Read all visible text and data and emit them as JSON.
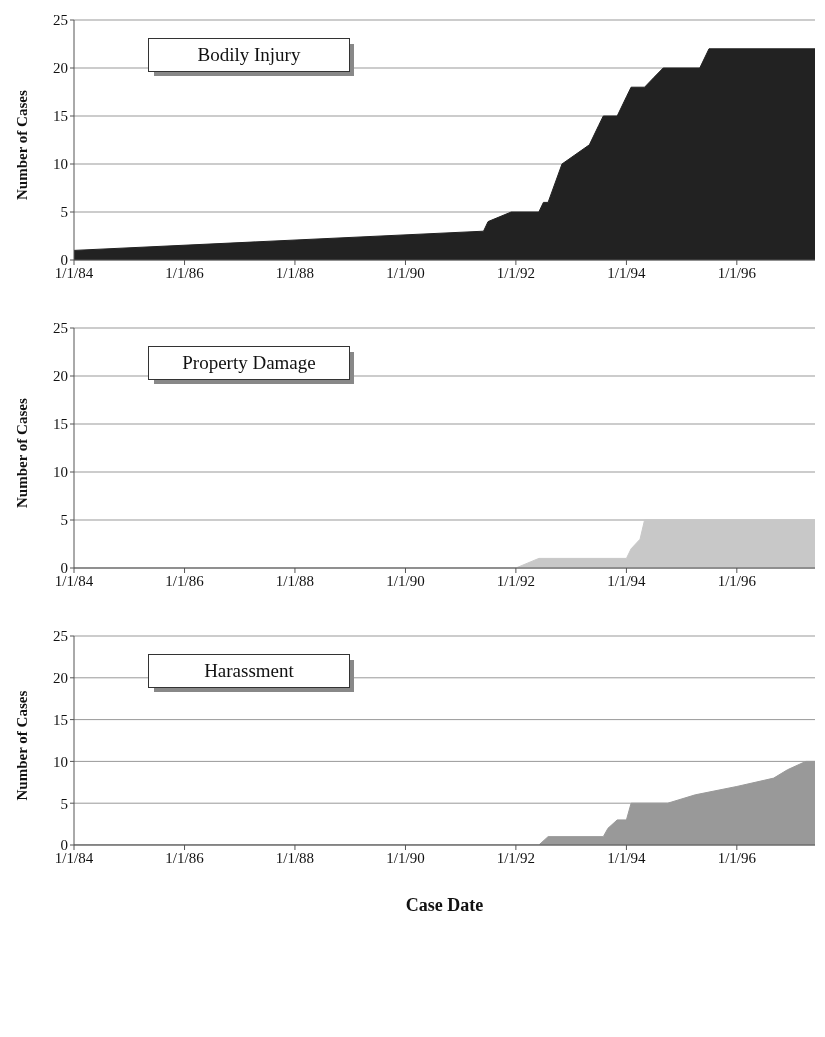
{
  "chart_data": [
    {
      "type": "area",
      "title": "Bodily Injury",
      "ylabel": "Number of Cases",
      "x": [
        "1984-01",
        "1991-06",
        "1991-07",
        "1991-12",
        "1992-06",
        "1992-07",
        "1992-08",
        "1992-11",
        "1993-05",
        "1993-07",
        "1993-08",
        "1993-11",
        "1994-01",
        "1994-02",
        "1994-05",
        "1994-07",
        "1994-09",
        "1995-05",
        "1995-07",
        "1997-06"
      ],
      "series": [
        {
          "color": "#222222",
          "values": [
            1,
            3,
            4,
            5,
            5,
            6,
            6,
            10,
            12,
            14,
            15,
            15,
            17,
            18,
            18,
            19,
            20,
            20,
            22,
            22
          ]
        }
      ],
      "xlim": [
        "1984-01-01",
        "1997-06-01"
      ],
      "xticks": [
        {
          "value": "1984-01-01",
          "label": "1/1/84"
        },
        {
          "value": "1986-01-01",
          "label": "1/1/86"
        },
        {
          "value": "1988-01-01",
          "label": "1/1/88"
        },
        {
          "value": "1990-01-01",
          "label": "1/1/90"
        },
        {
          "value": "1992-01-01",
          "label": "1/1/92"
        },
        {
          "value": "1994-01-01",
          "label": "1/1/94"
        },
        {
          "value": "1996-01-01",
          "label": "1/1/96"
        }
      ],
      "ylim": [
        0,
        25
      ],
      "yticks": [
        0,
        5,
        10,
        15,
        20,
        25
      ],
      "grid": "y",
      "legend": false
    },
    {
      "type": "area",
      "title": "Property Damage",
      "ylabel": "Number of Cases",
      "x": [
        "1984-01",
        "1992-01",
        "1992-06",
        "1994-01",
        "1994-02",
        "1994-04",
        "1994-05",
        "1997-06"
      ],
      "series": [
        {
          "color": "#c8c8c8",
          "values": [
            0,
            0,
            1,
            1,
            2,
            3,
            5,
            5
          ]
        }
      ],
      "xlim": [
        "1984-01-01",
        "1997-06-01"
      ],
      "xticks": [
        {
          "value": "1984-01-01",
          "label": "1/1/84"
        },
        {
          "value": "1986-01-01",
          "label": "1/1/86"
        },
        {
          "value": "1988-01-01",
          "label": "1/1/88"
        },
        {
          "value": "1990-01-01",
          "label": "1/1/90"
        },
        {
          "value": "1992-01-01",
          "label": "1/1/92"
        },
        {
          "value": "1994-01-01",
          "label": "1/1/94"
        },
        {
          "value": "1996-01-01",
          "label": "1/1/96"
        }
      ],
      "ylim": [
        0,
        25
      ],
      "yticks": [
        0,
        5,
        10,
        15,
        20,
        25
      ],
      "grid": "y",
      "legend": false
    },
    {
      "type": "area",
      "title": "Harassment",
      "ylabel": "Number of Cases",
      "xlabel": "Case Date",
      "x": [
        "1984-01",
        "1992-06",
        "1992-08",
        "1993-08",
        "1993-09",
        "1993-11",
        "1994-01",
        "1994-02",
        "1994-10",
        "1995-04",
        "1996-01",
        "1996-09",
        "1996-12",
        "1997-04",
        "1997-06"
      ],
      "series": [
        {
          "color": "#999999",
          "values": [
            0,
            0,
            1,
            1,
            2,
            3,
            3,
            5,
            5,
            6,
            7,
            8,
            9,
            10,
            10
          ]
        }
      ],
      "xlim": [
        "1984-01-01",
        "1997-06-01"
      ],
      "xticks": [
        {
          "value": "1984-01-01",
          "label": "1/1/84"
        },
        {
          "value": "1986-01-01",
          "label": "1/1/86"
        },
        {
          "value": "1988-01-01",
          "label": "1/1/88"
        },
        {
          "value": "1990-01-01",
          "label": "1/1/90"
        },
        {
          "value": "1992-01-01",
          "label": "1/1/92"
        },
        {
          "value": "1994-01-01",
          "label": "1/1/94"
        },
        {
          "value": "1996-01-01",
          "label": "1/1/96"
        }
      ],
      "ylim": [
        0,
        25
      ],
      "yticks": [
        0,
        5,
        10,
        15,
        20,
        25
      ],
      "grid": "y",
      "legend": false
    }
  ]
}
